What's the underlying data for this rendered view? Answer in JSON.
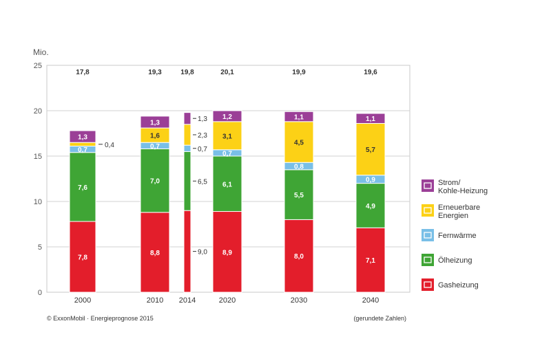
{
  "chart_data": {
    "type": "bar",
    "stacked": true,
    "y_unit": "Mio.",
    "ylim": [
      0,
      25
    ],
    "yticks": [
      0,
      5,
      10,
      15,
      20,
      25
    ],
    "grid": true,
    "legend_position": "right",
    "categories": [
      "2000",
      "2010",
      "2014",
      "2020",
      "2030",
      "2040"
    ],
    "totals": [
      "17,8",
      "19,3",
      "19,8",
      "20,1",
      "19,9",
      "19,6"
    ],
    "series": [
      {
        "name": "Gasheizung",
        "color": "#e31e2b",
        "icon": "gas-heater-icon",
        "values": [
          7.8,
          8.8,
          9.0,
          8.9,
          8.0,
          7.1
        ],
        "labels": [
          "7,8",
          "8,8",
          "9,0",
          "8,9",
          "8,0",
          "7,1"
        ]
      },
      {
        "name": "Ölheizung",
        "color": "#3fa535",
        "icon": "oil-heater-icon",
        "values": [
          7.6,
          7.0,
          6.5,
          6.1,
          5.5,
          4.9
        ],
        "labels": [
          "7,6",
          "7,0",
          "6,5",
          "6,1",
          "5,5",
          "4,9"
        ]
      },
      {
        "name": "Fernwärme",
        "color": "#79bfe7",
        "icon": "district-heating-icon",
        "values": [
          0.7,
          0.7,
          0.7,
          0.7,
          0.8,
          0.9
        ],
        "labels": [
          "0,7",
          "0,7",
          "0,7",
          "0,7",
          "0,8",
          "0,9"
        ]
      },
      {
        "name": "Erneuerbare Energien",
        "color": "#fcd116",
        "icon": "renewables-icon",
        "values": [
          0.4,
          1.6,
          2.3,
          3.1,
          4.5,
          5.7
        ],
        "labels": [
          "0,4",
          "1,6",
          "2,3",
          "3,1",
          "4,5",
          "5,7"
        ]
      },
      {
        "name": "Strom/ Kohle-Heizung",
        "color": "#9b3f97",
        "icon": "power-coal-icon",
        "values": [
          1.3,
          1.3,
          1.3,
          1.2,
          1.1,
          1.1
        ],
        "labels": [
          "1,3",
          "1,3",
          "1,3",
          "1,2",
          "1,1",
          "1,1"
        ]
      }
    ],
    "legend": [
      {
        "lines": [
          "Strom/",
          "Kohle-Heizung"
        ],
        "color": "#9b3f97",
        "icon": "power-coal-icon"
      },
      {
        "lines": [
          "Erneuerbare",
          "Energien"
        ],
        "color": "#fcd116",
        "icon": "renewables-icon"
      },
      {
        "lines": [
          "Fernwärme"
        ],
        "color": "#79bfe7",
        "icon": "district-heating-icon"
      },
      {
        "lines": [
          "Ölheizung"
        ],
        "color": "#3fa535",
        "icon": "oil-heater-icon"
      },
      {
        "lines": [
          "Gasheizung"
        ],
        "color": "#e31e2b",
        "icon": "gas-heater-icon"
      }
    ],
    "source": "© ExxonMobil · Energieprognose 2015",
    "note": "(gerundete Zahlen)"
  }
}
